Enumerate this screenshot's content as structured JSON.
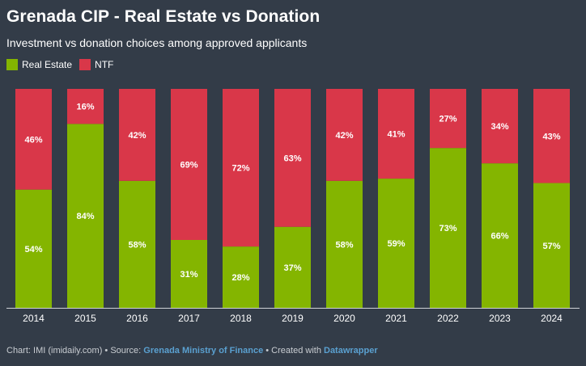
{
  "header": {
    "title": "Grenada CIP - Real Estate vs Donation",
    "subtitle": "Investment vs donation choices among approved applicants"
  },
  "legend": {
    "items": [
      {
        "label": "Real Estate",
        "color": "#84b500"
      },
      {
        "label": "NTF",
        "color": "#d93749"
      }
    ]
  },
  "chart_data": {
    "type": "bar",
    "stacked": true,
    "percent": true,
    "title": "Grenada CIP - Real Estate vs Donation",
    "subtitle": "Investment vs donation choices among approved applicants",
    "categories": [
      "2014",
      "2015",
      "2016",
      "2017",
      "2018",
      "2019",
      "2020",
      "2021",
      "2022",
      "2023",
      "2024"
    ],
    "series": [
      {
        "name": "Real Estate",
        "color": "#84b500",
        "values": [
          54,
          84,
          58,
          31,
          28,
          37,
          58,
          59,
          73,
          66,
          57
        ]
      },
      {
        "name": "NTF",
        "color": "#d93749",
        "values": [
          46,
          16,
          42,
          69,
          72,
          63,
          42,
          41,
          27,
          34,
          43
        ]
      }
    ],
    "ylim": [
      0,
      100
    ],
    "xlabel": "",
    "ylabel": "",
    "legend_position": "top-left",
    "grid": false
  },
  "footer": {
    "chart_prefix": "Chart: IMI (imidaily.com) • Source: ",
    "source_name": "Grenada Ministry of Finance",
    "created_prefix": " • Created with ",
    "tool_name": "Datawrapper"
  }
}
